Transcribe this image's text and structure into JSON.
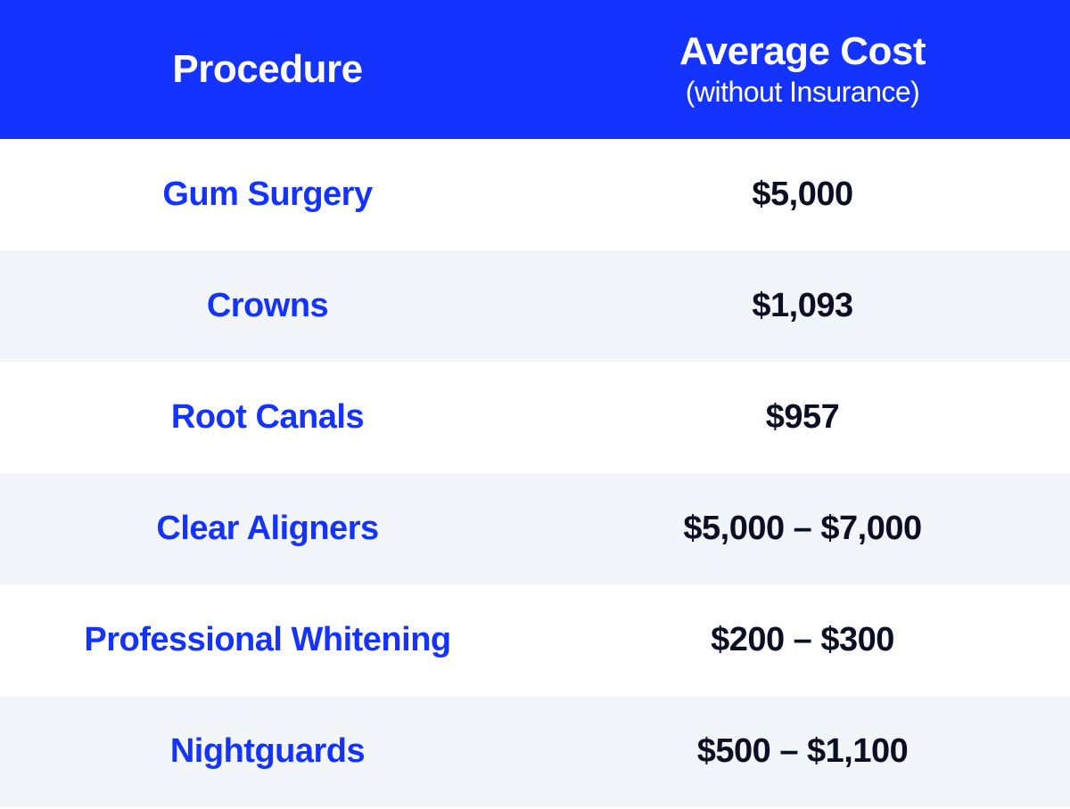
{
  "table": {
    "type": "table",
    "header_bg": "#1433ff",
    "header_text_color": "#ffffff",
    "procedure_text_color": "#1433ff",
    "cost_text_color": "#0b0f23",
    "row_bg_odd": "#ffffff",
    "row_bg_even": "#f2f6fb",
    "header_title_fontsize": 44,
    "header_sub_fontsize": 32,
    "cell_fontsize": 38,
    "font_weight_header": 700,
    "font_weight_cell": 700,
    "columns": [
      {
        "title": "Procedure",
        "sub": ""
      },
      {
        "title": "Average Cost",
        "sub": "(without Insurance)"
      }
    ],
    "rows": [
      {
        "procedure": "Gum Surgery",
        "cost": "$5,000"
      },
      {
        "procedure": "Crowns",
        "cost": "$1,093"
      },
      {
        "procedure": "Root Canals",
        "cost": "$957"
      },
      {
        "procedure": "Clear Aligners",
        "cost": "$5,000 – $7,000"
      },
      {
        "procedure": "Professional Whitening",
        "cost": "$200 – $300"
      },
      {
        "procedure": "Nightguards",
        "cost": "$500 – $1,100"
      }
    ]
  }
}
